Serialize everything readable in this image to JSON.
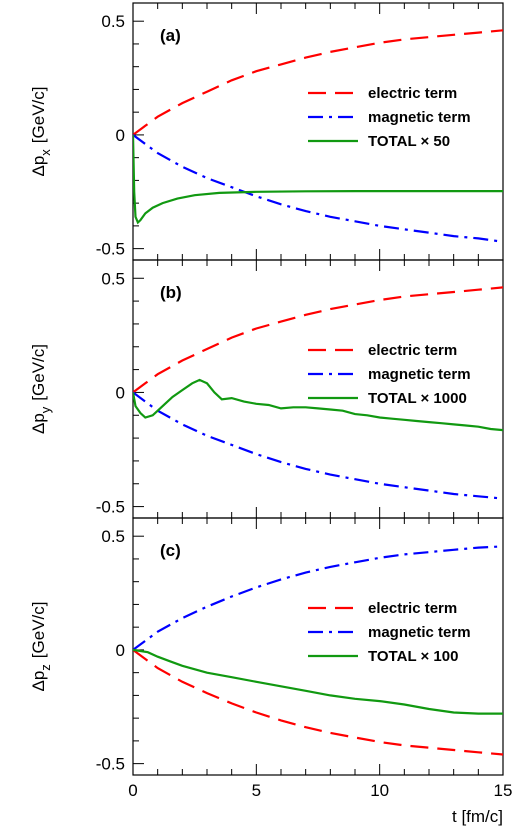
{
  "figure": {
    "xlabel": "t [fm/c]",
    "x_ticks": [
      "0",
      "5",
      "10",
      "15"
    ]
  },
  "chart_data": [
    {
      "type": "line",
      "panel": "(a)",
      "ylabel_main": "Δp",
      "ylabel_sub": "x",
      "ylabel_unit": "[GeV/c]",
      "xlim": [
        0,
        15
      ],
      "ylim": [
        -0.55,
        0.58
      ],
      "y_ticks": [
        {
          "value": 0.5,
          "label": "0.5"
        },
        {
          "value": 0,
          "label": "0"
        },
        {
          "value": -0.5,
          "label": "-0.5"
        }
      ],
      "legend_position": "middle-right",
      "series": [
        {
          "name": "electric term",
          "color": "#ff0000",
          "dash": "long-dash",
          "x": [
            0,
            0.5,
            1,
            2,
            3,
            4,
            5,
            6,
            7,
            8,
            9,
            10,
            11,
            12,
            13,
            14,
            15
          ],
          "y": [
            0,
            0.04,
            0.08,
            0.14,
            0.19,
            0.24,
            0.28,
            0.31,
            0.34,
            0.365,
            0.385,
            0.405,
            0.42,
            0.43,
            0.44,
            0.45,
            0.46
          ]
        },
        {
          "name": "magnetic term",
          "color": "#0000ff",
          "dash": "dash-dot",
          "x": [
            0,
            0.5,
            1,
            2,
            3,
            4,
            5,
            6,
            7,
            8,
            9,
            10,
            11,
            12,
            13,
            14,
            15
          ],
          "y": [
            0,
            -0.04,
            -0.08,
            -0.14,
            -0.19,
            -0.23,
            -0.27,
            -0.305,
            -0.335,
            -0.36,
            -0.38,
            -0.4,
            -0.415,
            -0.43,
            -0.445,
            -0.455,
            -0.47
          ]
        },
        {
          "name": "TOTAL × 50",
          "color": "#119911",
          "dash": "solid",
          "x": [
            0,
            0.05,
            0.1,
            0.2,
            0.3,
            0.5,
            0.8,
            1.2,
            1.8,
            2.5,
            3.5,
            5,
            7,
            9,
            11,
            13,
            15
          ],
          "y": [
            0,
            -0.25,
            -0.36,
            -0.385,
            -0.375,
            -0.345,
            -0.32,
            -0.3,
            -0.28,
            -0.265,
            -0.255,
            -0.25,
            -0.248,
            -0.247,
            -0.247,
            -0.247,
            -0.247
          ]
        }
      ]
    },
    {
      "type": "line",
      "panel": "(b)",
      "ylabel_main": "Δp",
      "ylabel_sub": "y",
      "ylabel_unit": "[GeV/c]",
      "xlim": [
        0,
        15
      ],
      "ylim": [
        -0.55,
        0.58
      ],
      "y_ticks": [
        {
          "value": 0.5,
          "label": "0.5"
        },
        {
          "value": 0,
          "label": "0"
        },
        {
          "value": -0.5,
          "label": "-0.5"
        }
      ],
      "legend_position": "middle-right",
      "series": [
        {
          "name": "electric term",
          "color": "#ff0000",
          "dash": "long-dash",
          "x": [
            0,
            0.5,
            1,
            2,
            3,
            4,
            5,
            6,
            7,
            8,
            9,
            10,
            11,
            12,
            13,
            14,
            15
          ],
          "y": [
            0,
            0.04,
            0.08,
            0.14,
            0.19,
            0.24,
            0.28,
            0.31,
            0.34,
            0.365,
            0.385,
            0.405,
            0.42,
            0.43,
            0.44,
            0.45,
            0.46
          ]
        },
        {
          "name": "magnetic term",
          "color": "#0000ff",
          "dash": "dash-dot",
          "x": [
            0,
            0.5,
            1,
            2,
            3,
            4,
            5,
            6,
            7,
            8,
            9,
            10,
            11,
            12,
            13,
            14,
            15
          ],
          "y": [
            0,
            -0.04,
            -0.08,
            -0.14,
            -0.19,
            -0.23,
            -0.27,
            -0.305,
            -0.335,
            -0.36,
            -0.38,
            -0.4,
            -0.415,
            -0.43,
            -0.445,
            -0.455,
            -0.465
          ]
        },
        {
          "name": "TOTAL × 1000",
          "color": "#119911",
          "dash": "solid",
          "x": [
            0,
            0.1,
            0.3,
            0.5,
            0.8,
            1.0,
            1.3,
            1.6,
            2.0,
            2.4,
            2.7,
            3.0,
            3.3,
            3.6,
            4.0,
            4.5,
            5.0,
            5.5,
            6.0,
            6.5,
            7.0,
            7.5,
            8.0,
            8.5,
            9.0,
            9.5,
            10.0,
            10.5,
            11.0,
            11.5,
            12.0,
            12.5,
            13.0,
            13.5,
            14.0,
            14.5,
            15.0
          ],
          "y": [
            0,
            -0.06,
            -0.09,
            -0.11,
            -0.1,
            -0.08,
            -0.05,
            -0.02,
            0.01,
            0.04,
            0.055,
            0.04,
            0.0,
            -0.03,
            -0.025,
            -0.04,
            -0.05,
            -0.055,
            -0.07,
            -0.065,
            -0.065,
            -0.07,
            -0.075,
            -0.08,
            -0.095,
            -0.1,
            -0.11,
            -0.115,
            -0.12,
            -0.125,
            -0.13,
            -0.135,
            -0.14,
            -0.145,
            -0.15,
            -0.16,
            -0.165
          ]
        }
      ]
    },
    {
      "type": "line",
      "panel": "(c)",
      "ylabel_main": "Δp",
      "ylabel_sub": "z",
      "ylabel_unit": "[GeV/c]",
      "xlim": [
        0,
        15
      ],
      "ylim": [
        -0.55,
        0.58
      ],
      "y_ticks": [
        {
          "value": 0.5,
          "label": "0.5"
        },
        {
          "value": 0,
          "label": "0"
        },
        {
          "value": -0.5,
          "label": "-0.5"
        }
      ],
      "legend_position": "middle-right",
      "series": [
        {
          "name": "electric term",
          "color": "#ff0000",
          "dash": "long-dash",
          "x": [
            0,
            0.5,
            1,
            2,
            3,
            4,
            5,
            6,
            7,
            8,
            9,
            10,
            11,
            12,
            13,
            14,
            15
          ],
          "y": [
            0,
            -0.04,
            -0.08,
            -0.14,
            -0.19,
            -0.235,
            -0.275,
            -0.31,
            -0.34,
            -0.365,
            -0.385,
            -0.405,
            -0.42,
            -0.43,
            -0.44,
            -0.45,
            -0.46
          ]
        },
        {
          "name": "magnetic term",
          "color": "#0000ff",
          "dash": "dash-dot",
          "x": [
            0,
            0.5,
            1,
            2,
            3,
            4,
            5,
            6,
            7,
            8,
            9,
            10,
            11,
            12,
            13,
            14,
            15
          ],
          "y": [
            0,
            0.04,
            0.08,
            0.14,
            0.19,
            0.235,
            0.275,
            0.31,
            0.34,
            0.365,
            0.385,
            0.405,
            0.42,
            0.43,
            0.44,
            0.45,
            0.455
          ]
        },
        {
          "name": "TOTAL × 100",
          "color": "#119911",
          "dash": "solid",
          "x": [
            0,
            0.3,
            0.6,
            1,
            1.5,
            2,
            3,
            4,
            5,
            6,
            7,
            8,
            9,
            10,
            11,
            12,
            13,
            14,
            15
          ],
          "y": [
            0,
            -0.005,
            -0.01,
            -0.03,
            -0.05,
            -0.07,
            -0.1,
            -0.12,
            -0.14,
            -0.16,
            -0.18,
            -0.2,
            -0.215,
            -0.225,
            -0.24,
            -0.26,
            -0.275,
            -0.28,
            -0.28
          ]
        }
      ]
    }
  ]
}
